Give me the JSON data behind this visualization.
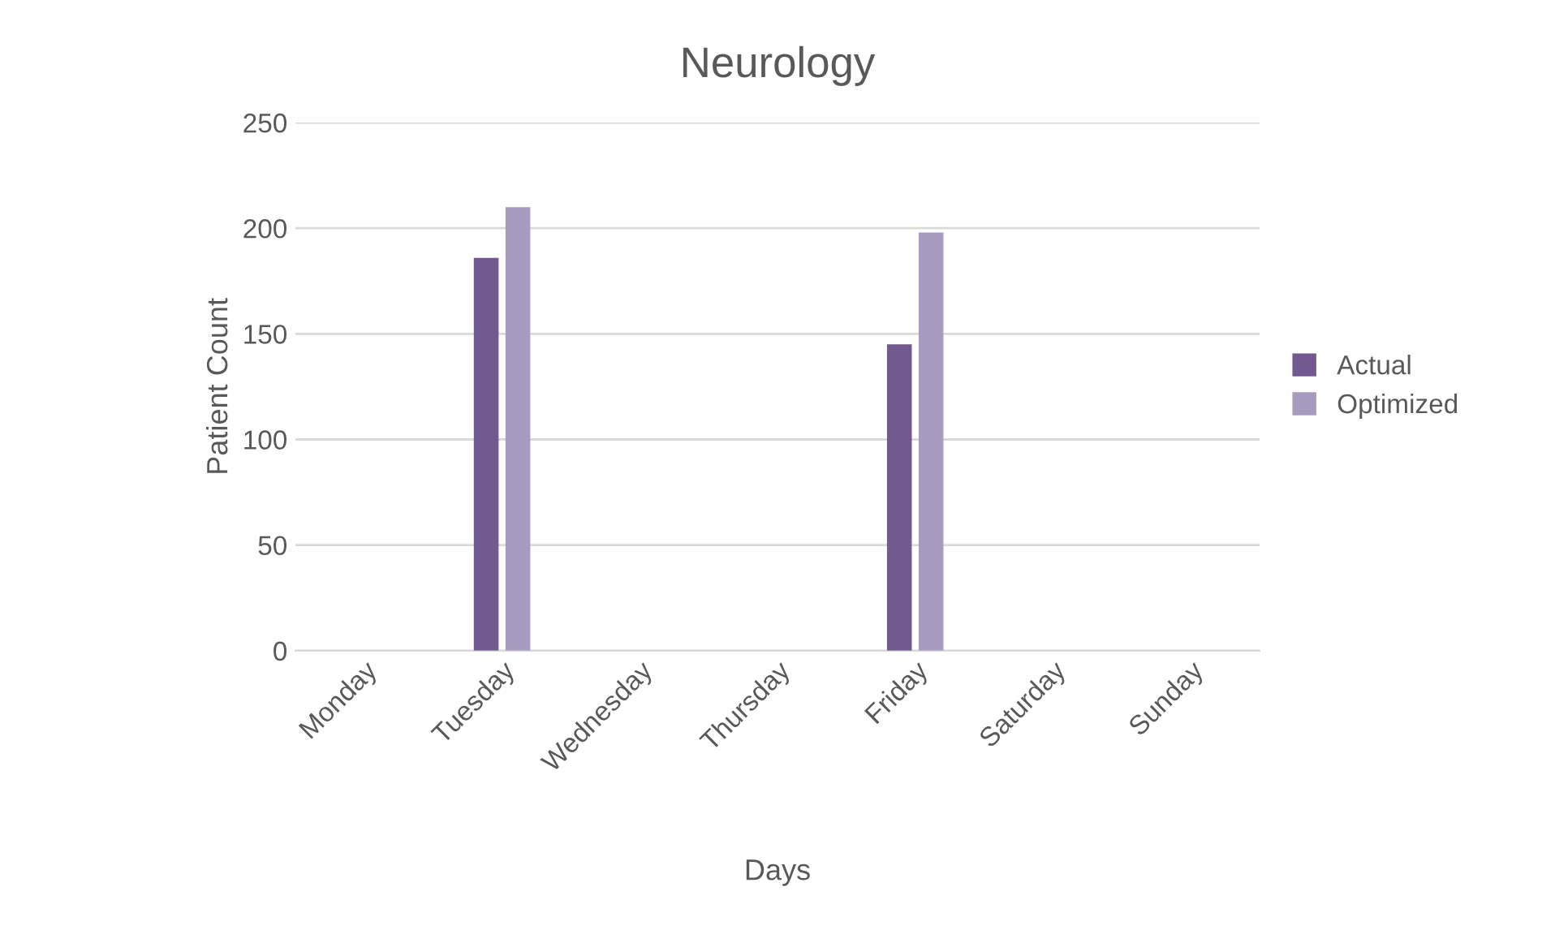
{
  "chart_data": {
    "type": "bar",
    "title": "Neurology",
    "xlabel": "Days",
    "ylabel": "Patient Count",
    "categories": [
      "Monday",
      "Tuesday",
      "Wednesday",
      "Thursday",
      "Friday",
      "Saturday",
      "Sunday"
    ],
    "series": [
      {
        "name": "Actual",
        "color": "#725a90",
        "values": [
          null,
          186,
          null,
          null,
          145,
          null,
          null
        ]
      },
      {
        "name": "Optimized",
        "color": "#a99bc0",
        "values": [
          null,
          210,
          null,
          null,
          198,
          null,
          null
        ]
      }
    ],
    "ylim": [
      0,
      250
    ],
    "yticks": [
      0,
      50,
      100,
      150,
      200,
      250
    ],
    "grid": "y",
    "legend": "right"
  }
}
